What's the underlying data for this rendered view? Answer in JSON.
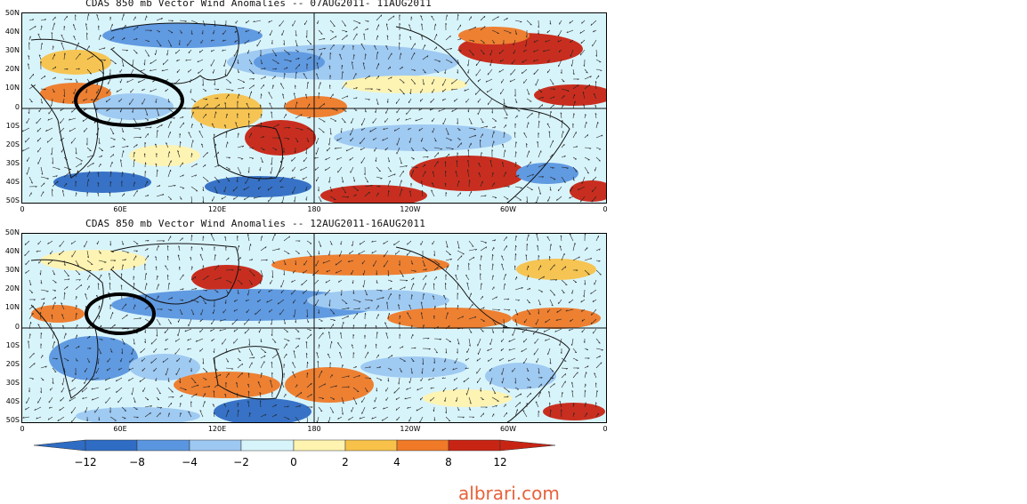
{
  "colors": {
    "blue_dark": "#2f6cc4",
    "blue_mid": "#5a96e0",
    "blue_light": "#9cc8f2",
    "cyan_pale": "#d8f4fb",
    "yellow_pale": "#fff3b0",
    "orange_light": "#f8c24a",
    "orange_mid": "#f07a28",
    "red_dark": "#c82414",
    "watermark": "#e8613a"
  },
  "panels": [
    {
      "title": "CDAS 850 mb Vector Wind Anomalies -- 07AUG2011- 11AUG2011",
      "lat_labels": [
        "50N",
        "40N",
        "30N",
        "20N",
        "10N",
        "0",
        "10S",
        "20S",
        "30S",
        "40S",
        "50S"
      ],
      "lon_labels": [
        "0",
        "60E",
        "120E",
        "180",
        "120W",
        "60W",
        "0"
      ]
    },
    {
      "title": "CDAS 850 mb Vector Wind Anomalies -- 12AUG2011-16AUG2011",
      "lat_labels": [
        "50N",
        "40N",
        "30N",
        "20N",
        "10N",
        "0",
        "10S",
        "20S",
        "30S",
        "40S",
        "50S"
      ],
      "lon_labels": [
        "0",
        "60E",
        "120E",
        "180",
        "120W",
        "60W",
        "0"
      ]
    }
  ],
  "colorbar": {
    "labels": [
      "−12",
      "−8",
      "−4",
      "−2",
      "0",
      "2",
      "4",
      "8",
      "12"
    ],
    "colors": [
      "#2f6cc4",
      "#5a96e0",
      "#9cc8f2",
      "#d8f4fb",
      "#fff3b0",
      "#f8c24a",
      "#f07a28",
      "#c82414"
    ]
  },
  "watermark": "albrari.com"
}
